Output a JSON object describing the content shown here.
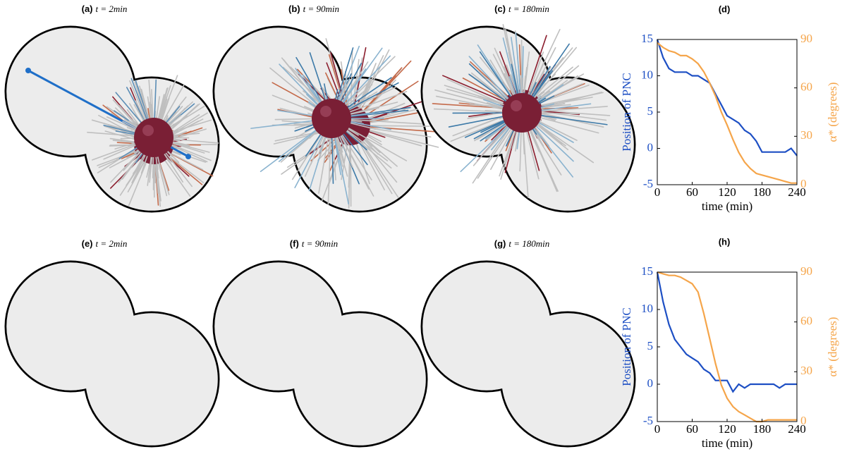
{
  "panels": [
    {
      "label": "(a)",
      "time": "t = 2min"
    },
    {
      "label": "(b)",
      "time": "t = 90min"
    },
    {
      "label": "(c)",
      "time": "t = 180min"
    },
    {
      "label": "(e)",
      "time": "t = 2min"
    },
    {
      "label": "(f)",
      "time": "t = 90min"
    },
    {
      "label": "(g)",
      "time": "t = 180min"
    }
  ],
  "chart_data": [
    {
      "type": "line",
      "title": "(d)",
      "xlabel": "time (min)",
      "x": [
        0,
        10,
        20,
        30,
        40,
        50,
        60,
        70,
        80,
        90,
        100,
        110,
        120,
        130,
        140,
        150,
        160,
        170,
        180,
        190,
        200,
        210,
        220,
        230,
        240
      ],
      "xlim": [
        0,
        240
      ],
      "xticks": [
        0,
        60,
        120,
        180,
        240
      ],
      "ylim": [
        -5,
        15
      ],
      "yticks": [
        -5,
        0,
        5,
        10,
        15
      ],
      "y2lim": [
        0,
        90
      ],
      "y2ticks": [
        0,
        30,
        60,
        90
      ],
      "series": [
        {
          "name": "Position of PNC",
          "color": "#1d4fc4",
          "values": [
            15,
            12.5,
            11,
            10.5,
            10.5,
            10.5,
            10,
            10,
            9.5,
            9,
            7.5,
            6,
            4.5,
            4,
            3.5,
            2.5,
            2,
            1,
            -0.5,
            -0.5,
            -0.5,
            -0.5,
            -0.5,
            0,
            -1
          ]
        },
        {
          "name": "α* (degrees)",
          "color": "#f5a54a",
          "axis": "y2",
          "values": [
            88,
            85,
            83,
            82,
            80,
            80,
            78,
            75,
            70,
            63,
            55,
            45,
            37,
            28,
            20,
            14,
            10,
            7,
            6,
            5,
            4,
            3,
            2,
            1,
            1
          ]
        }
      ]
    },
    {
      "type": "line",
      "title": "(h)",
      "xlabel": "time (min)",
      "x": [
        0,
        10,
        20,
        30,
        40,
        50,
        60,
        70,
        80,
        90,
        100,
        110,
        120,
        130,
        140,
        150,
        160,
        170,
        180,
        190,
        200,
        210,
        220,
        230,
        240
      ],
      "xlim": [
        0,
        240
      ],
      "xticks": [
        0,
        60,
        120,
        180,
        240
      ],
      "ylim": [
        -5,
        15
      ],
      "yticks": [
        -5,
        0,
        5,
        10,
        15
      ],
      "y2lim": [
        0,
        90
      ],
      "y2ticks": [
        0,
        30,
        60,
        90
      ],
      "series": [
        {
          "name": "Position of PNC",
          "color": "#1d4fc4",
          "values": [
            15,
            11,
            8,
            6,
            5,
            4,
            3.5,
            3,
            2,
            1.5,
            0.5,
            0.5,
            0.5,
            -1,
            0,
            -0.5,
            0,
            0,
            0,
            0,
            0,
            -0.5,
            0,
            0,
            0
          ]
        },
        {
          "name": "α* (degrees)",
          "color": "#f5a54a",
          "axis": "y2",
          "values": [
            90,
            89,
            88,
            88,
            87,
            85,
            83,
            78,
            65,
            50,
            35,
            22,
            14,
            9,
            6,
            4,
            2,
            0,
            0,
            1,
            1,
            1,
            1,
            1,
            1
          ]
        }
      ]
    }
  ]
}
